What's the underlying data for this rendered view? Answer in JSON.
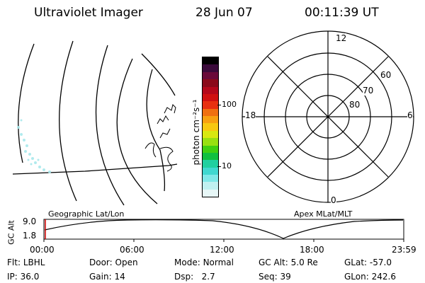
{
  "header": {
    "title": "Ultraviolet Imager",
    "date": "28 Jun 07",
    "time": "00:11:39 UT"
  },
  "geo_panel": {
    "label": "Geographic Lat/Lon"
  },
  "colorbar": {
    "unit_label": "photon cm⁻²s⁻¹",
    "ticks": [
      "100",
      "10"
    ],
    "colors": [
      "#000000",
      "#3a0a3a",
      "#6a0a3a",
      "#8a0a1a",
      "#b4081a",
      "#d01010",
      "#e83010",
      "#f07010",
      "#f8a010",
      "#f8c810",
      "#d8e810",
      "#98e010",
      "#40d010",
      "#10c040",
      "#20d0a0",
      "#40d8d0",
      "#80e8e8",
      "#c0f0f0",
      "#e8f8f8"
    ]
  },
  "polar_plot": {
    "label": "Apex MLat/MLT",
    "hour_labels": {
      "top": "12",
      "left": "18",
      "right": "6",
      "bottom": "0"
    },
    "lat_labels": [
      "60",
      "70",
      "80"
    ]
  },
  "timeline": {
    "axis_label": "GC Alt",
    "y_ticks": [
      "9.0",
      "1.8"
    ],
    "x_ticks": [
      "00:00",
      "06:00",
      "12:00",
      "18:00",
      "23:59"
    ],
    "marker_color": "#d00000"
  },
  "status": {
    "row1": [
      {
        "key": "Flt:",
        "value": "LBHL"
      },
      {
        "key": "Door:",
        "value": "Open"
      },
      {
        "key": "Mode:",
        "value": "Normal"
      },
      {
        "key": "GC Alt:",
        "value": "5.0 Re"
      },
      {
        "key": "GLat:",
        "value": "-57.0"
      }
    ],
    "row2": [
      {
        "key": "IP:",
        "value": "36.0"
      },
      {
        "key": "Gain:",
        "value": "14"
      },
      {
        "key": "Dsp:",
        "value": "2.7"
      },
      {
        "key": "Seq:",
        "value": "39"
      },
      {
        "key": "GLon:",
        "value": "242.6"
      }
    ]
  }
}
